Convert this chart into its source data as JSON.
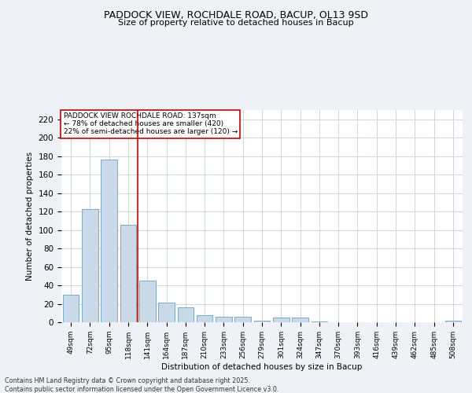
{
  "title_line1": "PADDOCK VIEW, ROCHDALE ROAD, BACUP, OL13 9SD",
  "title_line2": "Size of property relative to detached houses in Bacup",
  "xlabel": "Distribution of detached houses by size in Bacup",
  "ylabel": "Number of detached properties",
  "categories": [
    "49sqm",
    "72sqm",
    "95sqm",
    "118sqm",
    "141sqm",
    "164sqm",
    "187sqm",
    "210sqm",
    "233sqm",
    "256sqm",
    "279sqm",
    "301sqm",
    "324sqm",
    "347sqm",
    "370sqm",
    "393sqm",
    "416sqm",
    "439sqm",
    "462sqm",
    "485sqm",
    "508sqm"
  ],
  "values": [
    30,
    123,
    176,
    106,
    45,
    21,
    16,
    8,
    6,
    6,
    2,
    5,
    5,
    1,
    0,
    0,
    0,
    0,
    0,
    0,
    2
  ],
  "bar_color": "#c9d9e8",
  "bar_edge_color": "#7aaac8",
  "vline_color": "#cc0000",
  "annotation_text": "PADDOCK VIEW ROCHDALE ROAD: 137sqm\n← 78% of detached houses are smaller (420)\n22% of semi-detached houses are larger (120) →",
  "annotation_box_color": "#ffffff",
  "annotation_box_edge": "#cc0000",
  "ylim": [
    0,
    230
  ],
  "yticks": [
    0,
    20,
    40,
    60,
    80,
    100,
    120,
    140,
    160,
    180,
    200,
    220
  ],
  "footer_line1": "Contains HM Land Registry data © Crown copyright and database right 2025.",
  "footer_line2": "Contains public sector information licensed under the Open Government Licence v3.0.",
  "bg_color": "#eef2f7",
  "plot_bg_color": "#ffffff",
  "grid_color": "#c8d0dc"
}
